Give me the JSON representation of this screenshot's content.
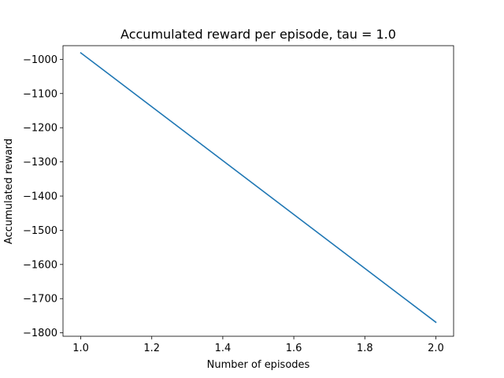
{
  "chart_data": {
    "type": "line",
    "title": "Accumulated reward per episode, tau = 1.0",
    "xlabel": "Number of episodes",
    "ylabel": "Accumulated reward",
    "xlim": [
      0.95,
      2.05
    ],
    "ylim": [
      -1810,
      -960
    ],
    "xticks": [
      1.0,
      1.2,
      1.4,
      1.6,
      1.8,
      2.0
    ],
    "xtick_labels": [
      "1.0",
      "1.2",
      "1.4",
      "1.6",
      "1.8",
      "2.0"
    ],
    "yticks": [
      -1800,
      -1700,
      -1600,
      -1500,
      -1400,
      -1300,
      -1200,
      -1100,
      -1000
    ],
    "ytick_labels": [
      "−1800",
      "−1700",
      "−1600",
      "−1500",
      "−1400",
      "−1300",
      "−1200",
      "−1100",
      "−1000"
    ],
    "grid": false,
    "series": [
      {
        "x": [
          1.0,
          2.0
        ],
        "y": [
          -981,
          -1769
        ],
        "color": "#1f77b4"
      }
    ]
  }
}
